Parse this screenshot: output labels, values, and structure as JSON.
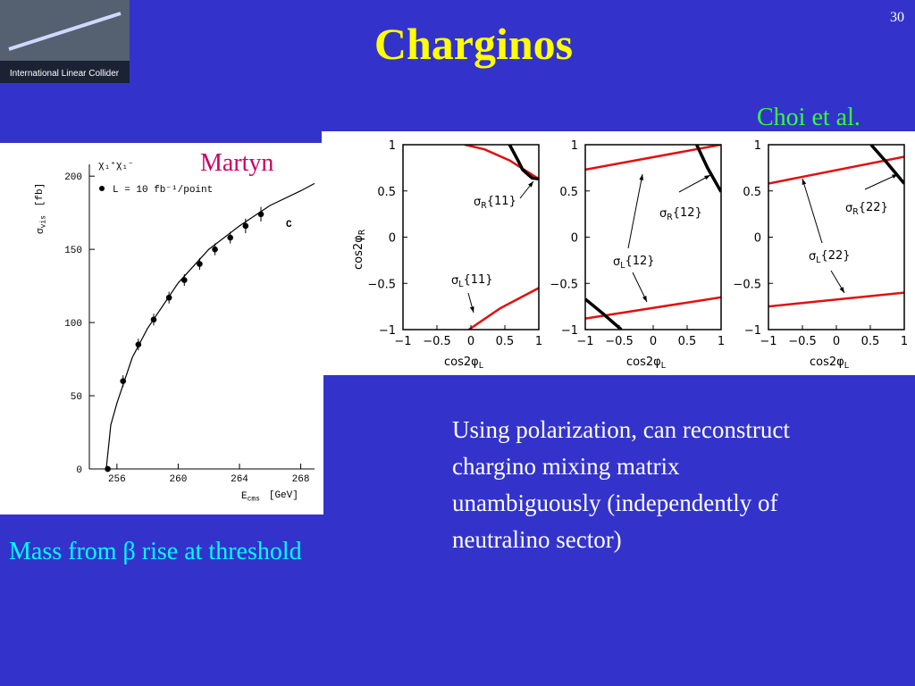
{
  "slide_number": "30",
  "title": "Charginos",
  "logo_text": "International Linear Collider",
  "credit_left": "Martyn",
  "credit_right": "Choi et al.",
  "caption_left": "Mass from β rise at threshold",
  "body_lines": [
    "Using polarization, can reconstruct",
    "chargino mixing matrix",
    "unambiguously (independently of",
    "neutralino sector)"
  ],
  "chart_data": [
    {
      "type": "scatter",
      "ylabel": {
        "base": "σ",
        "sub": "vis",
        "unit": "[fb]"
      },
      "xlabel": {
        "base": "E",
        "sub": "cms",
        "unit": "[GeV]"
      },
      "annotations": [
        "χ₁⁺χ₁⁻",
        "C"
      ],
      "xlim": [
        254.2,
        268.9
      ],
      "ylim": [
        0,
        205
      ],
      "xticks": [
        256,
        260,
        264,
        268
      ],
      "yticks": [
        0,
        50,
        100,
        150,
        200
      ],
      "series": [
        {
          "name": "L = 10 fb⁻¹/point",
          "color": "#000000",
          "x": [
            255.4,
            256.4,
            257.4,
            258.4,
            259.4,
            260.4,
            261.4,
            262.4,
            263.4,
            264.4,
            265.4
          ],
          "values": [
            0,
            60,
            85,
            102,
            117,
            129,
            140,
            150,
            158,
            166,
            174
          ],
          "errors": [
            2,
            4,
            4,
            4,
            4,
            4,
            4,
            4,
            4,
            5,
            5
          ]
        },
        {
          "type": "line",
          "color": "#000000",
          "x": [
            255.3,
            255.6,
            256,
            257,
            258,
            260,
            262,
            264,
            266,
            268,
            268.9
          ],
          "values": [
            0,
            30,
            45,
            76,
            96,
            127,
            150,
            166,
            180,
            190,
            195
          ]
        }
      ]
    },
    {
      "type": "line",
      "xlabel": {
        "base": "cos2φ",
        "sub": "L"
      },
      "ylabel": {
        "base": "cos2φ",
        "sub": "R"
      },
      "xlim": [
        -1,
        1
      ],
      "ylim": [
        -1,
        1
      ],
      "xticks": [
        {
          "value": -1,
          "label": "−1"
        },
        {
          "value": -0.5,
          "label": "−0.5"
        },
        0,
        0.5,
        1
      ],
      "yticks": [
        {
          "value": -1,
          "label": "−1"
        },
        {
          "value": -0.5,
          "label": "−0.5"
        },
        0,
        0.5,
        1
      ],
      "series": [
        {
          "color": "#e01010",
          "x": [
            -0.09,
            0.2,
            0.57,
            1
          ],
          "values": [
            1,
            0.95,
            0.83,
            0.63
          ]
        },
        {
          "color": "#e01010",
          "x": [
            -0.03,
            0.43,
            1
          ],
          "values": [
            -1,
            -0.77,
            -0.55
          ]
        },
        {
          "color": "#000000",
          "x": [
            0.57,
            0.7,
            0.76,
            0.9,
            1
          ],
          "values": [
            1,
            0.82,
            0.73,
            0.64,
            0.63
          ]
        }
      ],
      "annotations": [
        {
          "base": "σ",
          "sub": "R",
          "rest": "{11}"
        },
        {
          "base": "σ",
          "sub": "L",
          "rest": "{11}"
        }
      ]
    },
    {
      "type": "line",
      "xlabel": {
        "base": "cos2φ",
        "sub": "L"
      },
      "xlim": [
        -1,
        1
      ],
      "ylim": [
        -1,
        1
      ],
      "xticks": [
        {
          "value": -1,
          "label": "−1"
        },
        {
          "value": -0.5,
          "label": "−0.5"
        },
        0,
        0.5,
        1
      ],
      "yticks": [
        {
          "value": -1,
          "label": "−1"
        },
        {
          "value": -0.5,
          "label": "−0.5"
        },
        0,
        0.5,
        1
      ],
      "series": [
        {
          "color": "#e01010",
          "x": [
            -1,
            1
          ],
          "values": [
            0.73,
            1
          ]
        },
        {
          "color": "#e01010",
          "x": [
            -1,
            1
          ],
          "values": [
            -0.88,
            -0.65
          ]
        },
        {
          "color": "#000000",
          "x": [
            0.64,
            0.8,
            1
          ],
          "values": [
            1,
            0.75,
            0.49
          ]
        },
        {
          "color": "#000000",
          "x": [
            -1,
            -0.75,
            -0.47
          ],
          "values": [
            -0.67,
            -0.82,
            -1
          ]
        }
      ],
      "annotations": [
        {
          "base": "σ",
          "sub": "R",
          "rest": "{12}"
        },
        {
          "base": "σ",
          "sub": "L",
          "rest": "{12}"
        }
      ]
    },
    {
      "type": "line",
      "xlabel": {
        "base": "cos2φ",
        "sub": "L"
      },
      "xlim": [
        -1,
        1
      ],
      "ylim": [
        -1,
        1
      ],
      "xticks": [
        {
          "value": -1,
          "label": "−1"
        },
        {
          "value": -0.5,
          "label": "−0.5"
        },
        0,
        0.5,
        1
      ],
      "yticks": [
        {
          "value": -1,
          "label": "−1"
        },
        {
          "value": -0.5,
          "label": "−0.5"
        },
        0,
        0.5,
        1
      ],
      "series": [
        {
          "color": "#e01010",
          "x": [
            -1,
            1
          ],
          "values": [
            0.58,
            0.87
          ]
        },
        {
          "color": "#e01010",
          "x": [
            -1,
            1
          ],
          "values": [
            -0.75,
            -0.6
          ]
        },
        {
          "color": "#000000",
          "x": [
            0.51,
            0.75,
            1
          ],
          "values": [
            1,
            0.8,
            0.58
          ]
        }
      ],
      "annotations": [
        {
          "base": "σ",
          "sub": "R",
          "rest": "{22}"
        },
        {
          "base": "σ",
          "sub": "L",
          "rest": "{22}"
        }
      ]
    }
  ]
}
